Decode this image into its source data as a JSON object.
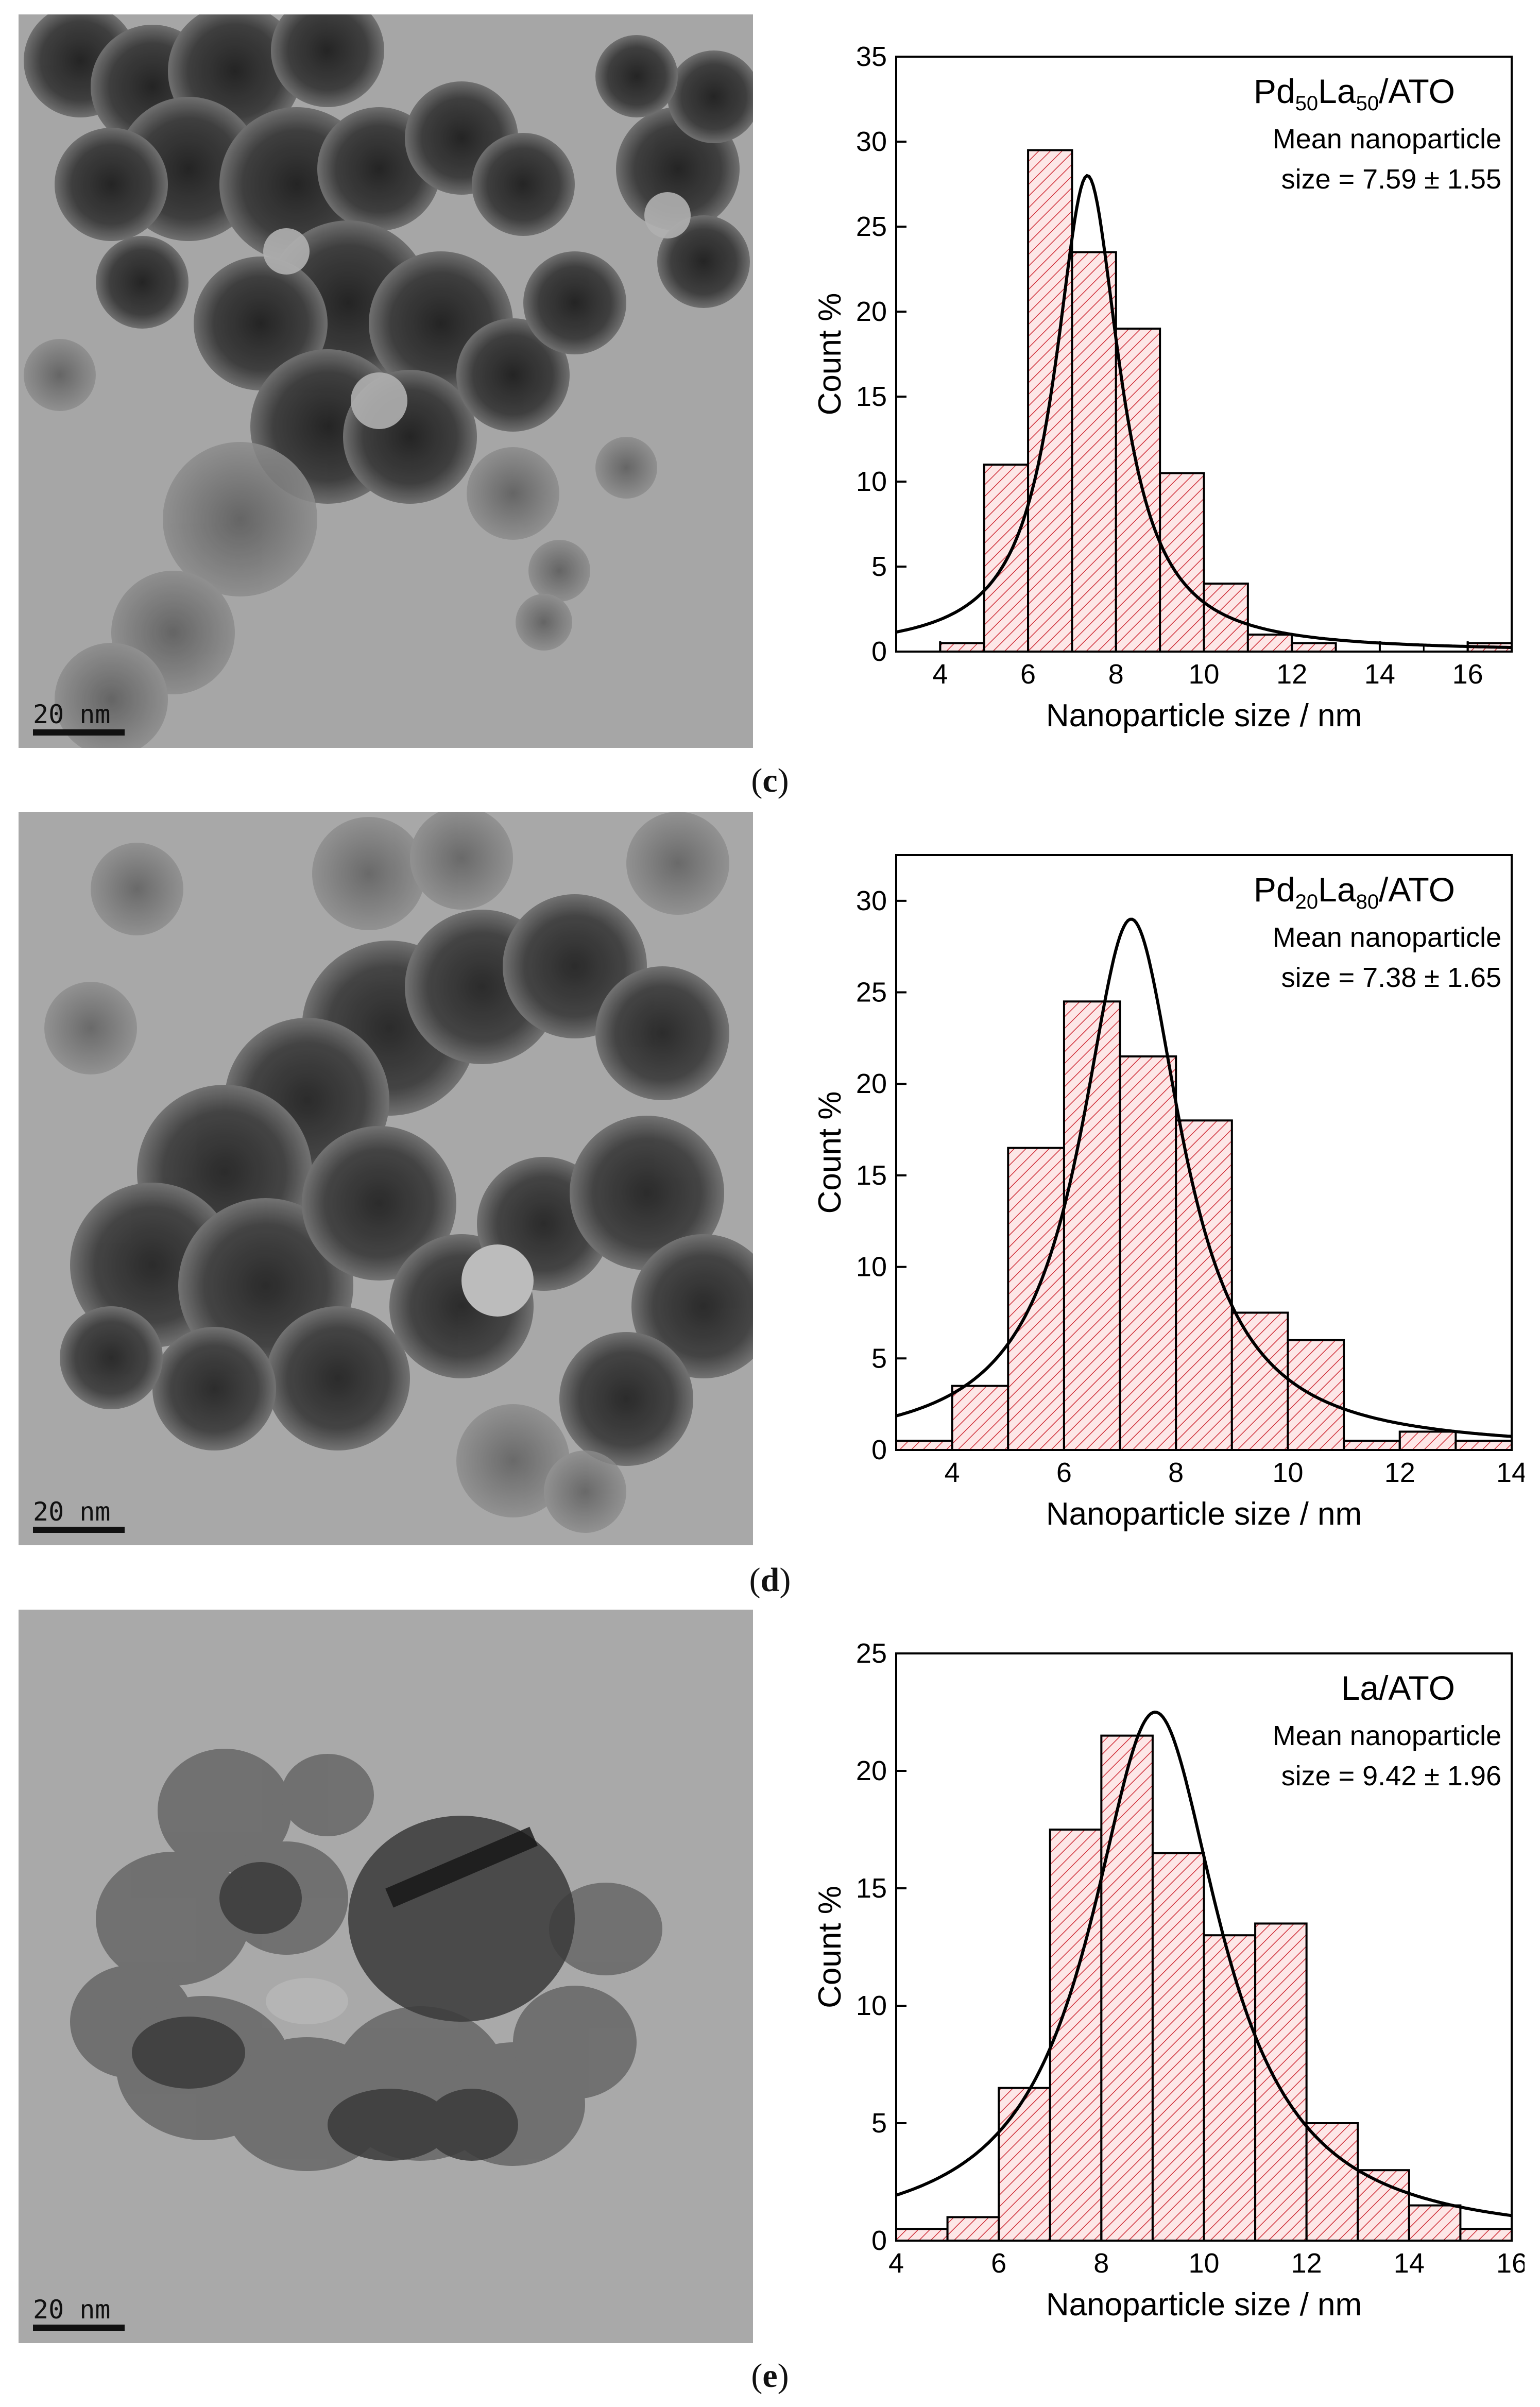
{
  "panels": [
    {
      "id": "c",
      "caption_open": "(",
      "caption_letter": "c",
      "caption_close": ")",
      "micrograph": {
        "scale_bar_label": "20 nm"
      },
      "chart_data": {
        "type": "bar",
        "sample_label": {
          "base": "Pd",
          "sub1": "50",
          "mid": "La",
          "sub2": "50",
          "tail": "/ATO"
        },
        "annotation_line1": "Mean nanoparticle",
        "annotation_line2": "size = 7.59 ± 1.55",
        "xlabel": "Nanoparticle size / nm",
        "ylabel": "Count %",
        "xlim": [
          3,
          17
        ],
        "ylim": [
          0,
          35
        ],
        "xticks": [
          4,
          6,
          8,
          10,
          12,
          14,
          16
        ],
        "yticks": [
          0,
          5,
          10,
          15,
          20,
          25,
          30,
          35
        ],
        "bins": [
          [
            4,
            5,
            0.5
          ],
          [
            5,
            6,
            11
          ],
          [
            6,
            7,
            29.5
          ],
          [
            7,
            8,
            23.5
          ],
          [
            8,
            9,
            19
          ],
          [
            9,
            10,
            10.5
          ],
          [
            10,
            11,
            4
          ],
          [
            11,
            12,
            1
          ],
          [
            12,
            13,
            0.5
          ],
          [
            16,
            17,
            0.5
          ]
        ],
        "fit": {
          "type": "lorentzian",
          "center": 7.35,
          "peak": 28,
          "width": 0.9
        }
      }
    },
    {
      "id": "d",
      "caption_open": "(",
      "caption_letter": "d",
      "caption_close": ")",
      "micrograph": {
        "scale_bar_label": "20 nm"
      },
      "chart_data": {
        "type": "bar",
        "sample_label": {
          "base": "Pd",
          "sub1": "20",
          "mid": "La",
          "sub2": "80",
          "tail": "/ATO"
        },
        "annotation_line1": "Mean nanoparticle",
        "annotation_line2": "size = 7.38 ± 1.65",
        "xlabel": "Nanoparticle size / nm",
        "ylabel": "Count %",
        "xlim": [
          3,
          14
        ],
        "ylim": [
          0,
          32.5
        ],
        "xticks": [
          4,
          6,
          8,
          10,
          12,
          14
        ],
        "yticks": [
          0,
          5,
          10,
          15,
          20,
          25,
          30
        ],
        "bins": [
          [
            3,
            4,
            0.5
          ],
          [
            4,
            5,
            3.5
          ],
          [
            5,
            6,
            16.5
          ],
          [
            6,
            7,
            24.5
          ],
          [
            7,
            8,
            21.5
          ],
          [
            8,
            9,
            18
          ],
          [
            9,
            10,
            7.5
          ],
          [
            10,
            11,
            6
          ],
          [
            11,
            12,
            0.5
          ],
          [
            12,
            13,
            1
          ],
          [
            13,
            14,
            0.5
          ]
        ],
        "fit": {
          "type": "lorentzian",
          "center": 7.2,
          "peak": 29,
          "width": 1.1
        }
      }
    },
    {
      "id": "e",
      "caption_open": "(",
      "caption_letter": "e",
      "caption_close": ")",
      "micrograph": {
        "scale_bar_label": "20 nm"
      },
      "chart_data": {
        "type": "bar",
        "sample_label": {
          "base": "La/ATO",
          "sub1": "",
          "mid": "",
          "sub2": "",
          "tail": ""
        },
        "annotation_line1": "Mean nanoparticle",
        "annotation_line2": "size = 9.42 ± 1.96",
        "xlabel": "Nanoparticle size / nm",
        "ylabel": "Count %",
        "xlim": [
          4,
          16
        ],
        "ylim": [
          0,
          25
        ],
        "xticks": [
          4,
          6,
          8,
          10,
          12,
          14,
          16
        ],
        "yticks": [
          0,
          5,
          10,
          15,
          20,
          25
        ],
        "bins": [
          [
            4,
            5,
            0.5
          ],
          [
            5,
            6,
            1
          ],
          [
            6,
            7,
            6.5
          ],
          [
            7,
            8,
            17.5
          ],
          [
            8,
            9,
            21.5
          ],
          [
            9,
            10,
            16.5
          ],
          [
            10,
            11,
            13
          ],
          [
            11,
            12,
            13.5
          ],
          [
            12,
            13,
            5
          ],
          [
            13,
            14,
            3
          ],
          [
            14,
            15,
            1.5
          ],
          [
            15,
            16,
            0.5
          ]
        ],
        "fit": {
          "type": "lorentzian",
          "center": 9.05,
          "peak": 22.5,
          "width": 1.55
        }
      }
    }
  ]
}
